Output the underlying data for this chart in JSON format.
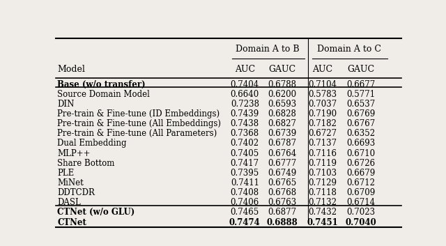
{
  "col_headers_top_ab": "Domain A to B",
  "col_headers_top_ac": "Domain A to C",
  "col_headers": [
    "Model",
    "AUC",
    "GAUC",
    "AUC",
    "GAUC"
  ],
  "rows": [
    {
      "model": "Base (w/o transfer)",
      "ab_auc": "0.7404",
      "ab_gauc": "0.6788",
      "ac_auc": "0.7104",
      "ac_gauc": "0.6677",
      "bold": false,
      "section": "base"
    },
    {
      "model": "Source Domain Model",
      "ab_auc": "0.6640",
      "ab_gauc": "0.6200",
      "ac_auc": "0.5783",
      "ac_gauc": "0.5771",
      "bold": false,
      "section": "middle"
    },
    {
      "model": "DIN",
      "ab_auc": "0.7238",
      "ab_gauc": "0.6593",
      "ac_auc": "0.7037",
      "ac_gauc": "0.6537",
      "bold": false,
      "section": "middle"
    },
    {
      "model": "Pre-train & Fine-tune (ID Embeddings)",
      "ab_auc": "0.7439",
      "ab_gauc": "0.6828",
      "ac_auc": "0.7190",
      "ac_gauc": "0.6769",
      "bold": false,
      "section": "middle"
    },
    {
      "model": "Pre-train & Fine-tune (All Embeddings)",
      "ab_auc": "0.7438",
      "ab_gauc": "0.6827",
      "ac_auc": "0.7182",
      "ac_gauc": "0.6767",
      "bold": false,
      "section": "middle"
    },
    {
      "model": "Pre-train & Fine-tune (All Parameters)",
      "ab_auc": "0.7368",
      "ab_gauc": "0.6739",
      "ac_auc": "0.6727",
      "ac_gauc": "0.6352",
      "bold": false,
      "section": "middle"
    },
    {
      "model": "Dual Embedding",
      "ab_auc": "0.7402",
      "ab_gauc": "0.6787",
      "ac_auc": "0.7137",
      "ac_gauc": "0.6693",
      "bold": false,
      "section": "middle"
    },
    {
      "model": "MLP++",
      "ab_auc": "0.7405",
      "ab_gauc": "0.6764",
      "ac_auc": "0.7116",
      "ac_gauc": "0.6710",
      "bold": false,
      "section": "middle"
    },
    {
      "model": "Share Bottom",
      "ab_auc": "0.7417",
      "ab_gauc": "0.6777",
      "ac_auc": "0.7119",
      "ac_gauc": "0.6726",
      "bold": false,
      "section": "middle"
    },
    {
      "model": "PLE",
      "ab_auc": "0.7395",
      "ab_gauc": "0.6749",
      "ac_auc": "0.7103",
      "ac_gauc": "0.6679",
      "bold": false,
      "section": "middle"
    },
    {
      "model": "MiNet",
      "ab_auc": "0.7411",
      "ab_gauc": "0.6765",
      "ac_auc": "0.7129",
      "ac_gauc": "0.6712",
      "bold": false,
      "section": "middle"
    },
    {
      "model": "DDTCDR",
      "ab_auc": "0.7408",
      "ab_gauc": "0.6768",
      "ac_auc": "0.7118",
      "ac_gauc": "0.6709",
      "bold": false,
      "section": "middle"
    },
    {
      "model": "DASL",
      "ab_auc": "0.7406",
      "ab_gauc": "0.6763",
      "ac_auc": "0.7132",
      "ac_gauc": "0.6714",
      "bold": false,
      "section": "middle"
    },
    {
      "model": "CTNet (w/o GLU)",
      "ab_auc": "0.7465",
      "ab_gauc": "0.6877",
      "ac_auc": "0.7432",
      "ac_gauc": "0.7023",
      "bold": false,
      "section": "bottom"
    },
    {
      "model": "CTNet",
      "ab_auc": "0.7474",
      "ab_gauc": "0.6888",
      "ac_auc": "0.7451",
      "ac_gauc": "0.7040",
      "bold": true,
      "section": "bottom"
    }
  ],
  "bg_color": "#f0ede8",
  "text_color": "#000000",
  "fontsize": 8.5,
  "header_fontsize": 9.0
}
